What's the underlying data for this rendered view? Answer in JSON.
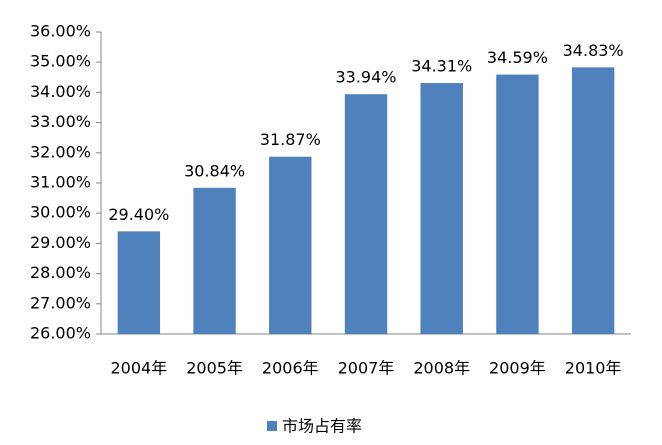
{
  "chart_data": {
    "type": "bar",
    "categories": [
      "2004年",
      "2005年",
      "2006年",
      "2007年",
      "2008年",
      "2009年",
      "2010年"
    ],
    "series": [
      {
        "name": "市场占有率",
        "color": "#4f81bd",
        "values": [
          29.4,
          30.84,
          31.87,
          33.94,
          34.31,
          34.59,
          34.83
        ],
        "value_labels": [
          "29.40%",
          "30.84%",
          "31.87%",
          "33.94%",
          "34.31%",
          "34.59%",
          "34.83%"
        ]
      }
    ],
    "ylim": [
      26,
      36
    ],
    "yticks": [
      {
        "value": 26,
        "label": "26.00%"
      },
      {
        "value": 27,
        "label": "27.00%"
      },
      {
        "value": 28,
        "label": "28.00%"
      },
      {
        "value": 29,
        "label": "29.00%"
      },
      {
        "value": 30,
        "label": "30.00%"
      },
      {
        "value": 31,
        "label": "31.00%"
      },
      {
        "value": 32,
        "label": "32.00%"
      },
      {
        "value": 33,
        "label": "33.00%"
      },
      {
        "value": 34,
        "label": "34.00%"
      },
      {
        "value": 35,
        "label": "35.00%"
      },
      {
        "value": 36,
        "label": "36.00%"
      }
    ],
    "grid": false,
    "legend": "bottom"
  }
}
